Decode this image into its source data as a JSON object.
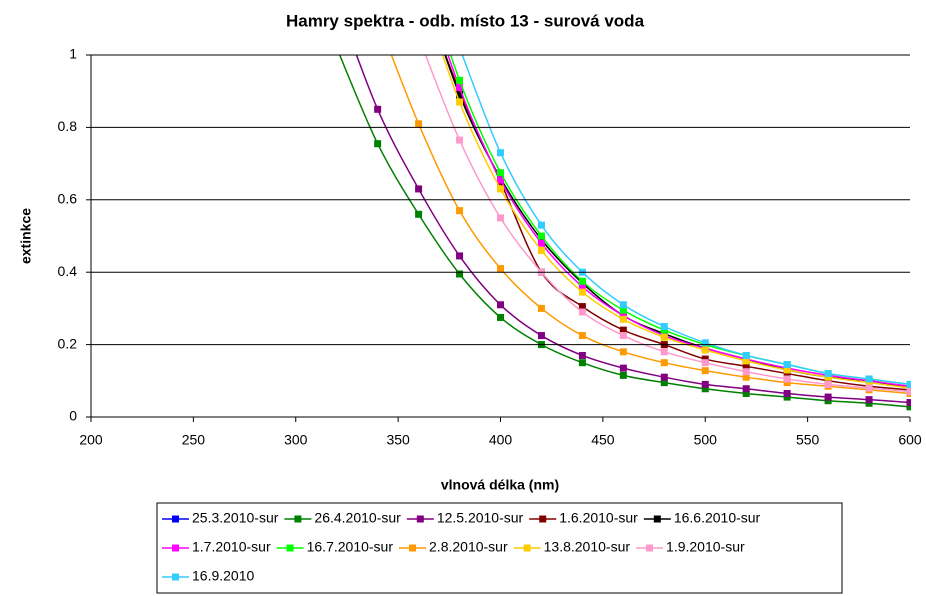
{
  "chart_data": {
    "type": "line",
    "title": "Hamry spektra - odb. místo 13 - surová voda",
    "x_label": "vlnová délka (nm)",
    "y_label": "extinkce",
    "x": [
      320,
      340,
      360,
      380,
      400,
      420,
      440,
      460,
      480,
      500,
      520,
      540,
      560,
      580,
      600
    ],
    "xlim": [
      200,
      600
    ],
    "xticks": [
      200,
      250,
      300,
      350,
      400,
      450,
      500,
      550,
      600
    ],
    "ylim": [
      0,
      1
    ],
    "yticks": [
      0,
      0.2,
      0.4,
      0.6,
      0.8,
      1
    ],
    "grid": true,
    "legend": "bottom",
    "series": [
      {
        "name": "25.3.2010-sur",
        "color": "#0000ff",
        "values": [
          null,
          null,
          null,
          null,
          null,
          null,
          null,
          null,
          null,
          null,
          null,
          null,
          null,
          null,
          null
        ]
      },
      {
        "name": "26.4.2010-sur",
        "color": "#008000",
        "values": [
          1.02,
          0.755,
          0.56,
          0.395,
          0.275,
          0.2,
          0.15,
          0.115,
          0.095,
          0.078,
          0.065,
          0.055,
          0.045,
          0.038,
          0.028
        ]
      },
      {
        "name": "12.5.2010-sur",
        "color": "#800080",
        "values": [
          1.15,
          0.85,
          0.63,
          0.445,
          0.31,
          0.225,
          0.17,
          0.135,
          0.11,
          0.09,
          0.078,
          0.065,
          0.055,
          0.048,
          0.04
        ]
      },
      {
        "name": "1.6.2010-sur",
        "color": "#800000",
        "values": [
          null,
          null,
          1.2,
          0.9,
          0.65,
          0.4,
          0.305,
          0.24,
          0.2,
          0.16,
          0.14,
          0.12,
          0.1,
          0.085,
          0.075
        ]
      },
      {
        "name": "16.6.2010-sur",
        "color": "#000000",
        "values": [
          null,
          null,
          1.22,
          0.89,
          0.66,
          0.49,
          0.37,
          0.28,
          0.23,
          0.19,
          0.16,
          0.13,
          0.11,
          0.1,
          0.08
        ]
      },
      {
        "name": "1.7.2010-sur",
        "color": "#ff00ff",
        "values": [
          null,
          null,
          1.25,
          0.91,
          0.655,
          0.48,
          0.36,
          0.28,
          0.225,
          0.19,
          0.16,
          0.135,
          0.115,
          0.1,
          0.085
        ]
      },
      {
        "name": "16.7.2010-sur",
        "color": "#00ff00",
        "values": [
          null,
          null,
          1.28,
          0.93,
          0.675,
          0.5,
          0.375,
          0.295,
          0.24,
          0.2,
          0.17,
          0.145,
          0.12,
          0.105,
          0.09
        ]
      },
      {
        "name": "2.8.2010-sur",
        "color": "#ff9900",
        "values": [
          null,
          1.1,
          0.81,
          0.57,
          0.41,
          0.3,
          0.225,
          0.18,
          0.15,
          0.128,
          0.11,
          0.095,
          0.085,
          0.075,
          0.065
        ]
      },
      {
        "name": "13.8.2010-sur",
        "color": "#ffcc00",
        "values": [
          null,
          null,
          1.2,
          0.87,
          0.63,
          0.46,
          0.345,
          0.27,
          0.22,
          0.185,
          0.155,
          0.13,
          0.11,
          0.095,
          0.08
        ]
      },
      {
        "name": "1.9.2010-sur",
        "color": "#ff99cc",
        "values": [
          null,
          null,
          1.05,
          0.765,
          0.55,
          0.4,
          0.29,
          0.225,
          0.18,
          0.15,
          0.125,
          0.105,
          0.09,
          0.08,
          0.07
        ]
      },
      {
        "name": "16.9.2010",
        "color": "#33ccff",
        "values": [
          null,
          null,
          null,
          1.02,
          0.73,
          0.53,
          0.4,
          0.31,
          0.25,
          0.205,
          0.17,
          0.145,
          0.12,
          0.105,
          0.09
        ]
      }
    ]
  }
}
